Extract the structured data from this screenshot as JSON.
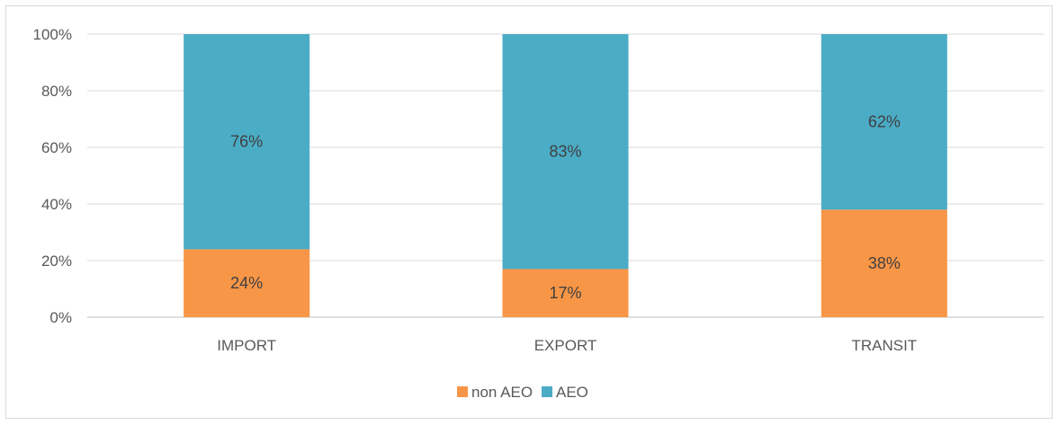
{
  "chart_data": {
    "type": "bar",
    "stacked": true,
    "categories": [
      "IMPORT",
      "EXPORT",
      "TRANSIT"
    ],
    "series": [
      {
        "name": "non AEO",
        "values": [
          24,
          17,
          38
        ],
        "labels": [
          "24%",
          "17%",
          "38%"
        ],
        "color": "#f79646"
      },
      {
        "name": "AEO",
        "values": [
          76,
          83,
          62
        ],
        "labels": [
          "76%",
          "83%",
          "62%"
        ],
        "color": "#4bacc6"
      }
    ],
    "ylim": [
      0,
      100
    ],
    "yticks": [
      "0%",
      "20%",
      "40%",
      "60%",
      "80%",
      "100%"
    ],
    "grid": true,
    "legend_position": "bottom"
  }
}
